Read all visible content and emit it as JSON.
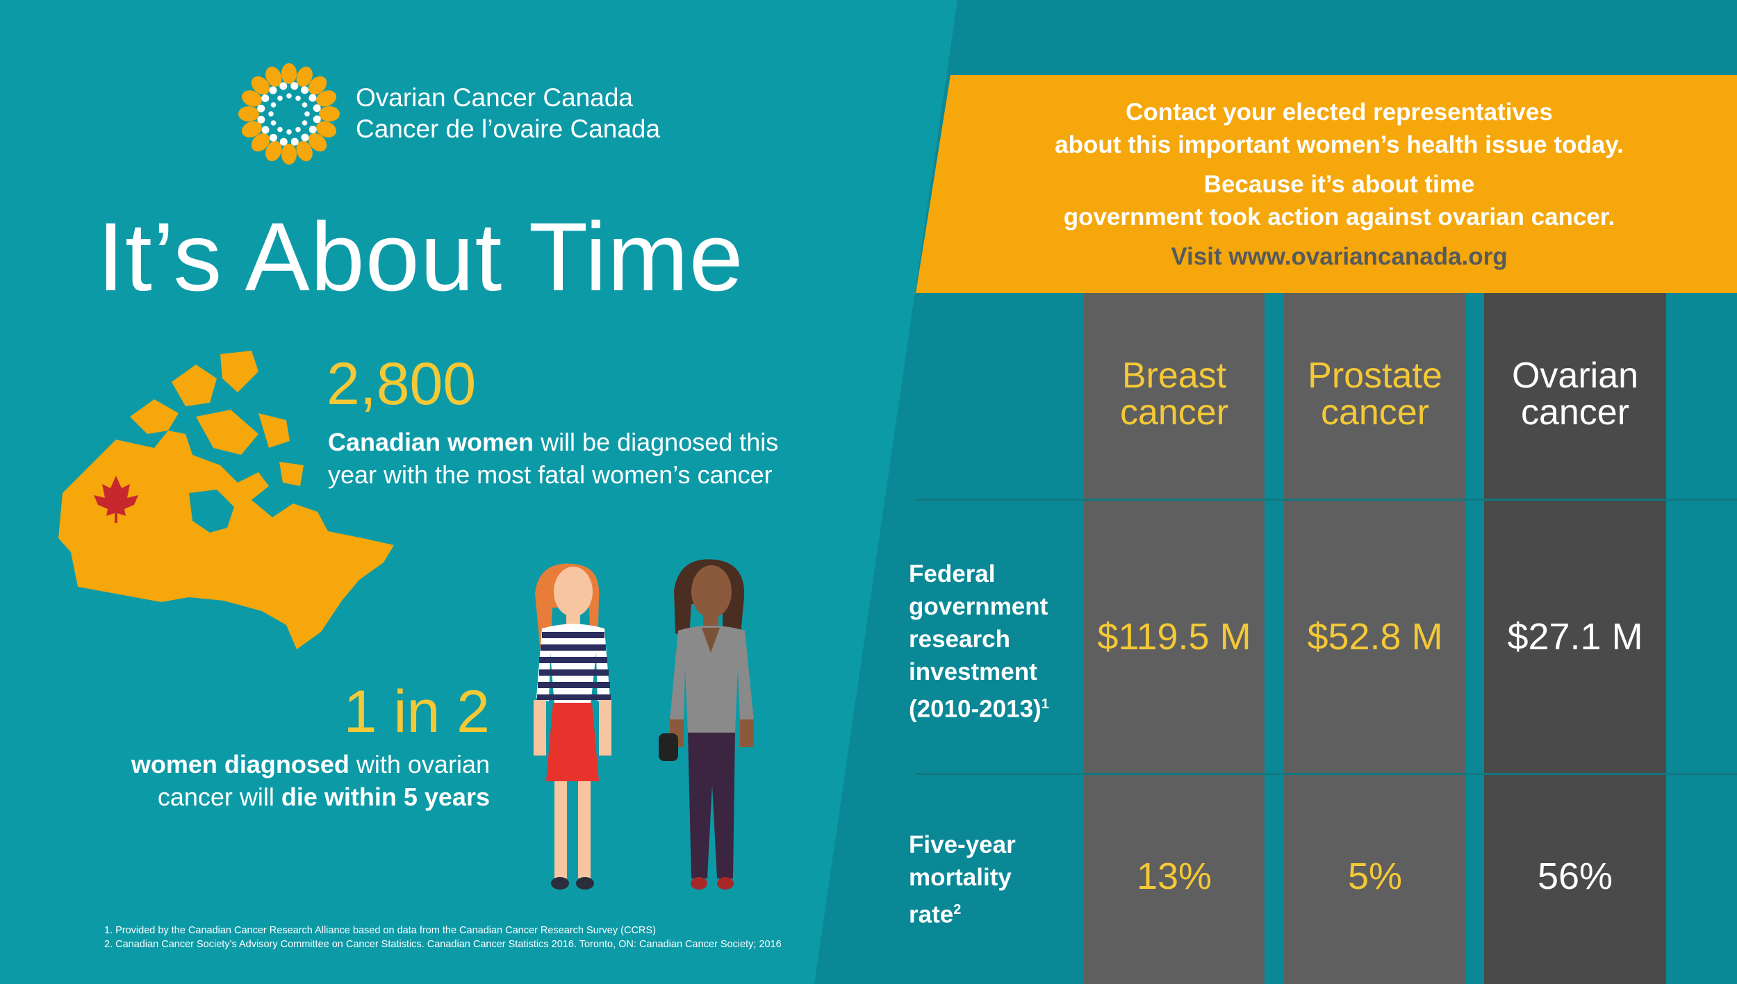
{
  "colors": {
    "teal_background": "#0d9aa7",
    "teal_dark": "#0a8896",
    "cta_orange": "#f5a70b",
    "stat_yellow": "#f5c936",
    "column_gray": "#5f5f5f",
    "column_dark": "#4a4a4a",
    "visit_gray": "#555a5d",
    "map_orange": "#f5a70b",
    "maple_red": "#c7282e"
  },
  "logo": {
    "icon": "sunflower-logo-icon",
    "name_en": "Ovarian Cancer Canada",
    "name_fr": "Cancer de l’ovaire Canada"
  },
  "title": "It’s About Time",
  "stat1": {
    "number": "2,800",
    "bold": "Canadian women",
    "line1_rest": " will be diagnosed this",
    "line2": "year with the most fatal women’s cancer"
  },
  "stat2": {
    "number": "1 in 2",
    "bold1": "women diagnosed",
    "line1_rest": " with ovarian",
    "line2_start": "cancer will ",
    "bold2": "die within 5 years"
  },
  "illustrations": {
    "map": "canada-map-icon",
    "maple_leaf": "maple-leaf-icon",
    "women": "two-women-illustration"
  },
  "call_to_action": {
    "line1": "Contact your elected representatives",
    "line2": "about this important women’s health issue today.",
    "line3": "Because it’s about time",
    "line4": "government took action against ovarian cancer.",
    "visit": "Visit www.ovariancanada.org"
  },
  "chart_data": {
    "type": "table",
    "columns": [
      {
        "line1": "Breast",
        "line2": "cancer"
      },
      {
        "line1": "Prostate",
        "line2": "cancer"
      },
      {
        "line1": "Ovarian",
        "line2": "cancer"
      }
    ],
    "rows": [
      {
        "label_lines": [
          "Federal",
          "government",
          "research",
          "investment",
          "(2010-2013)"
        ],
        "footnote_mark": "1",
        "values": [
          "$119.5 M",
          "$52.8 M",
          "$27.1 M"
        ],
        "numeric_values_millions_cad": [
          119.5,
          52.8,
          27.1
        ]
      },
      {
        "label_lines": [
          "Five-year",
          "mortality",
          "rate"
        ],
        "footnote_mark": "2",
        "values": [
          "13%",
          "5%",
          "56%"
        ],
        "numeric_values_percent": [
          13,
          5,
          56
        ]
      }
    ]
  },
  "footnotes": [
    "1. Provided by the Canadian Cancer Research Alliance based on data from the Canadian Cancer Research Survey (CCRS)",
    "2. Canadian Cancer Society’s Advisory Committee on Cancer Statistics. Canadian Cancer Statistics 2016. Toronto, ON: Canadian Cancer Society; 2016"
  ]
}
